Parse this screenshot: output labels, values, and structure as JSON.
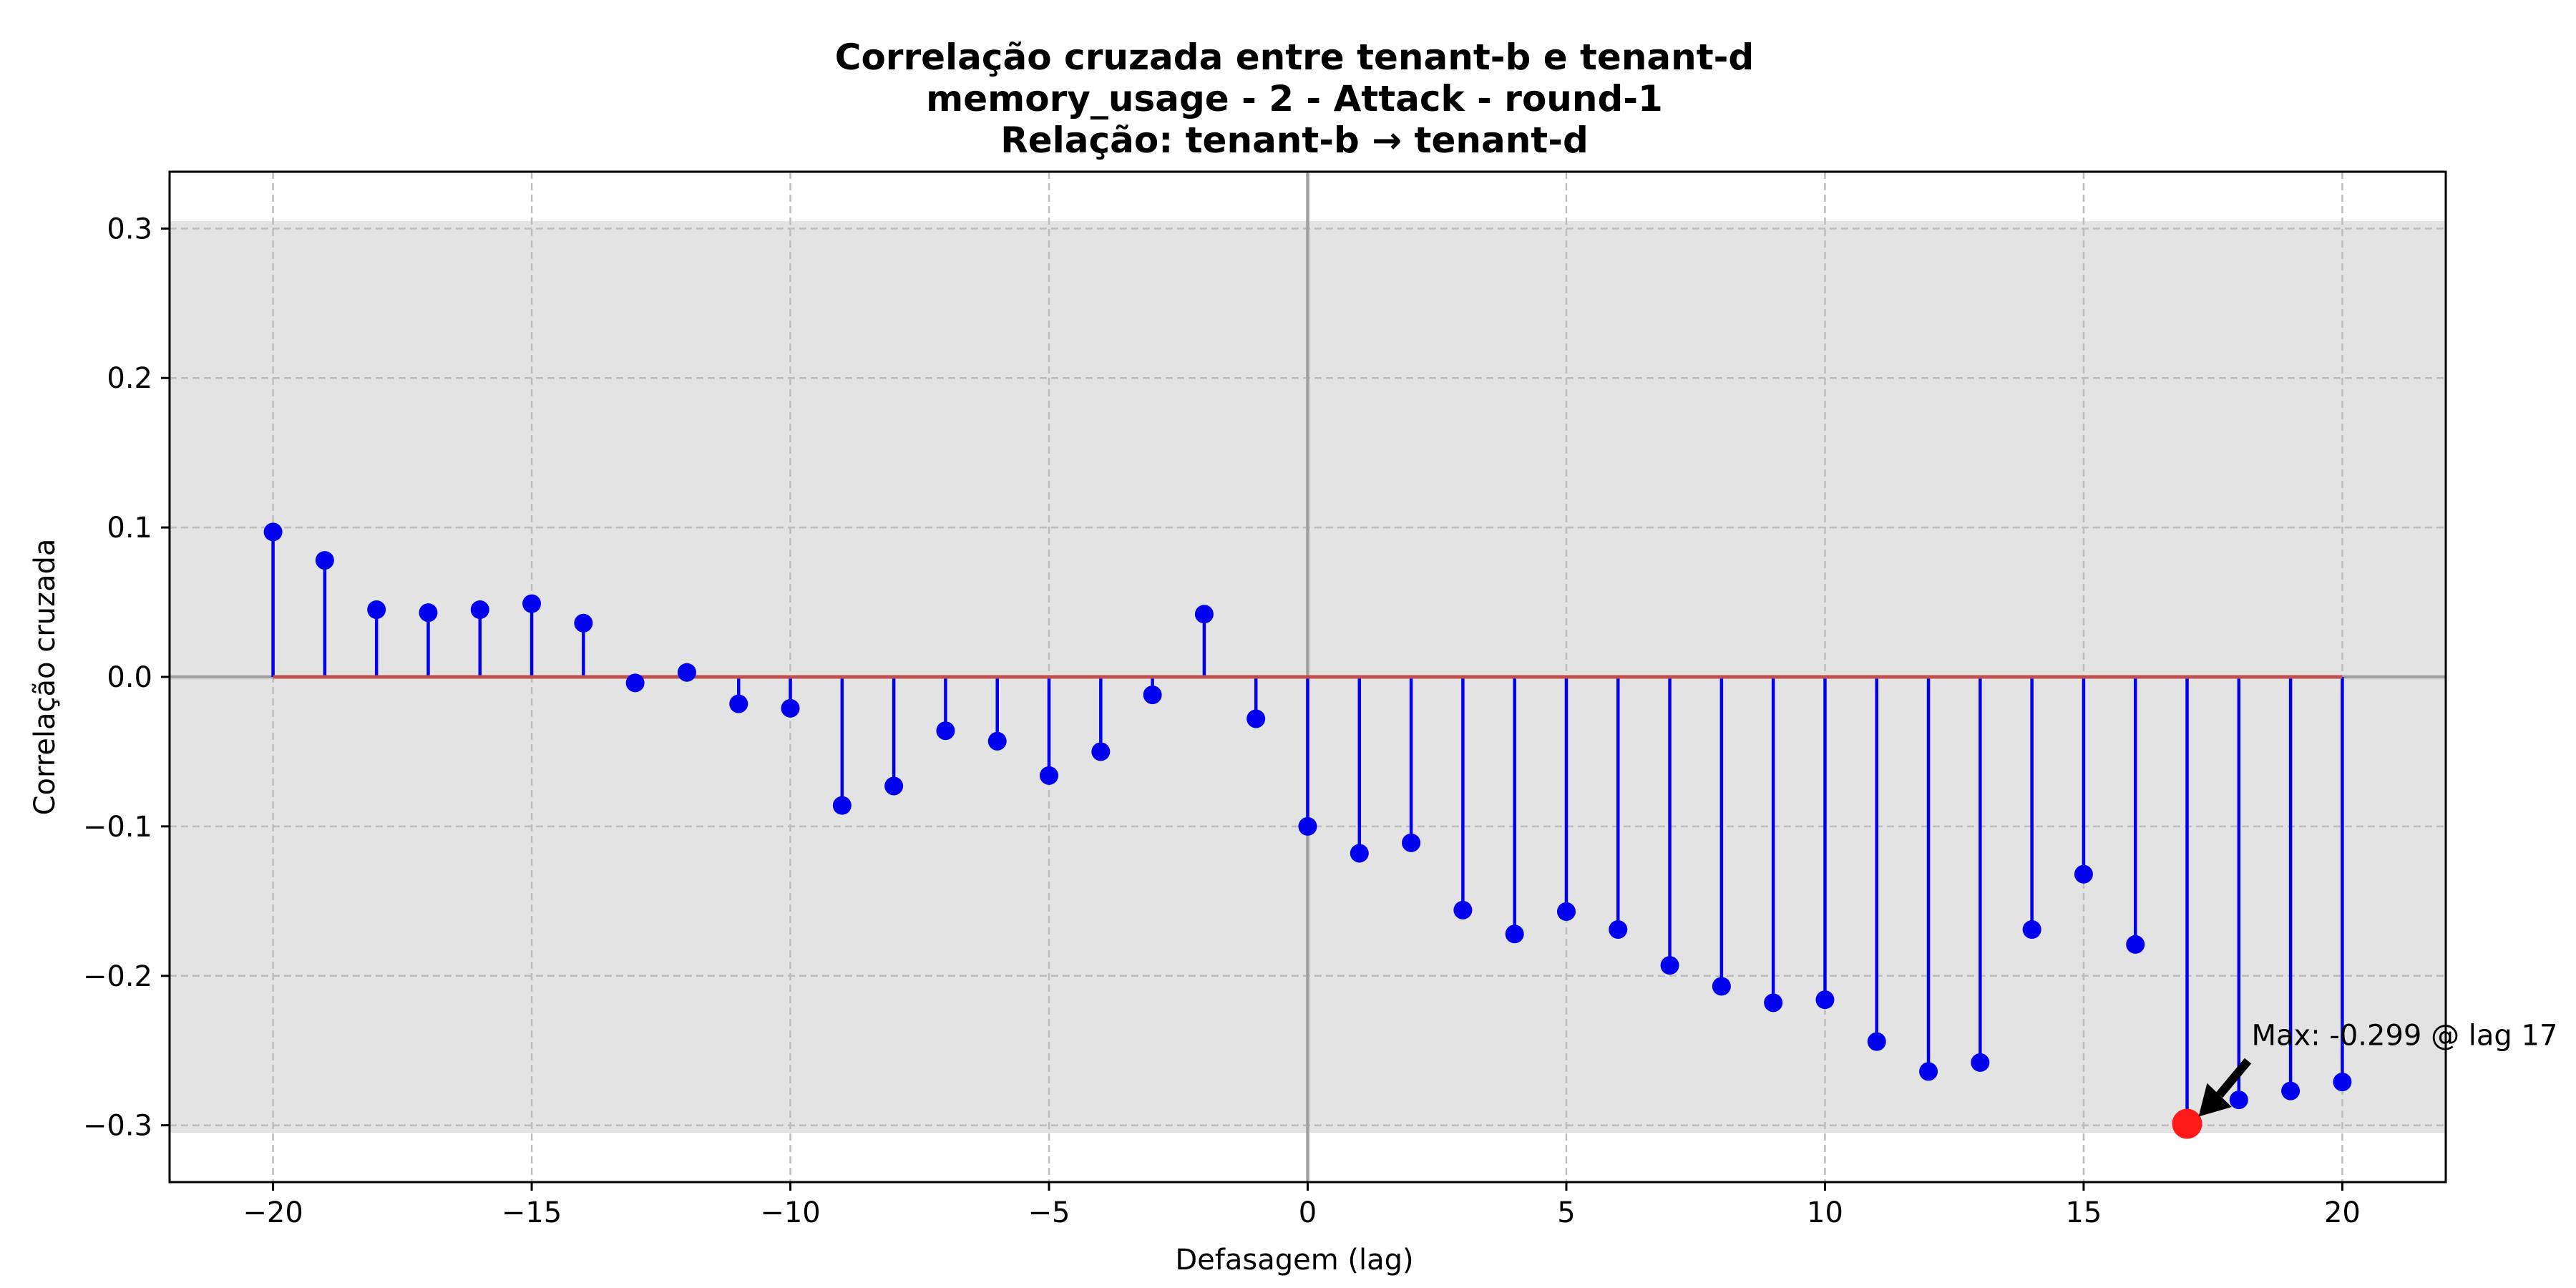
{
  "chart_data": {
    "type": "stem",
    "title_lines": [
      "Correlação cruzada entre tenant-b e tenant-d",
      "memory_usage - 2 - Attack - round-1",
      "Relação: tenant-b → tenant-d"
    ],
    "xlabel": "Defasagem (lag)",
    "ylabel": "Correlação cruzada",
    "xlim": [
      -22,
      22
    ],
    "ylim": [
      -0.338,
      0.338
    ],
    "xticks": [
      -20,
      -15,
      -10,
      -5,
      0,
      5,
      10,
      15,
      20
    ],
    "xtick_labels": [
      "−20",
      "−15",
      "−10",
      "−5",
      "0",
      "5",
      "10",
      "15",
      "20"
    ],
    "yticks": [
      0.3,
      0.2,
      0.1,
      0.0,
      -0.1,
      -0.2,
      -0.3
    ],
    "ytick_labels": [
      "0.3",
      "0.2",
      "0.1",
      "0.0",
      "−0.1",
      "−0.2",
      "−0.3"
    ],
    "grid": true,
    "shaded_band": [
      -0.305,
      0.305
    ],
    "lags": [
      -20,
      -19,
      -18,
      -17,
      -16,
      -15,
      -14,
      -13,
      -12,
      -11,
      -10,
      -9,
      -8,
      -7,
      -6,
      -5,
      -4,
      -3,
      -2,
      -1,
      0,
      1,
      2,
      3,
      4,
      5,
      6,
      7,
      8,
      9,
      10,
      11,
      12,
      13,
      14,
      15,
      16,
      17,
      18,
      19,
      20
    ],
    "values": [
      0.097,
      0.078,
      0.045,
      0.043,
      0.045,
      0.049,
      0.036,
      -0.004,
      0.003,
      -0.018,
      -0.021,
      -0.086,
      -0.073,
      -0.036,
      -0.043,
      -0.066,
      -0.05,
      -0.012,
      0.042,
      -0.028,
      -0.1,
      -0.118,
      -0.111,
      -0.156,
      -0.172,
      -0.157,
      -0.169,
      -0.193,
      -0.207,
      -0.218,
      -0.216,
      -0.244,
      -0.264,
      -0.258,
      -0.169,
      -0.132,
      -0.179,
      -0.299,
      -0.283,
      -0.277,
      -0.271
    ],
    "max_point": {
      "lag": 17,
      "value": -0.299
    },
    "annotation": "Max: -0.299 @ lag 17",
    "colors": {
      "stem": "#0000ee",
      "marker": "#0000ee",
      "baseline": "#c0504d",
      "max_marker": "#ff1a1a",
      "band": "#e3e3e3",
      "grid": "#bdbdbd",
      "zero_line": "#a0a0a0"
    }
  }
}
